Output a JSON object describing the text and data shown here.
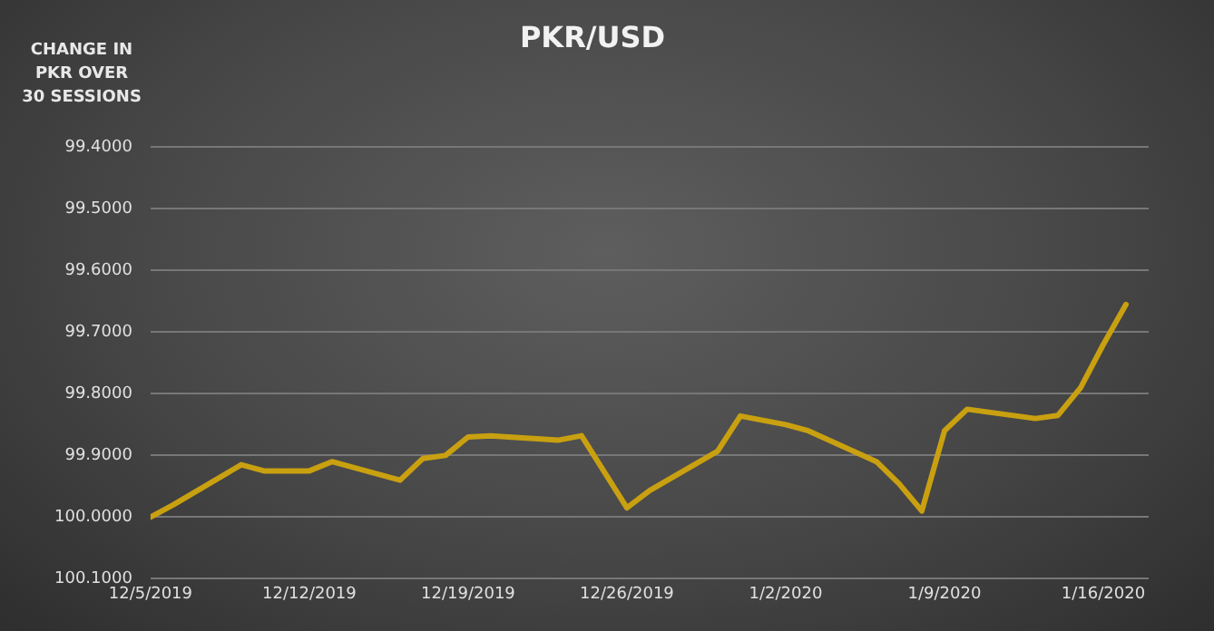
{
  "chart_data": {
    "type": "line",
    "title": "PKR/USD",
    "ylabel": "CHANGE IN PKR OVER 30 SESSIONS",
    "x": [
      "2019-12-05",
      "2019-12-06",
      "2019-12-09",
      "2019-12-10",
      "2019-12-11",
      "2019-12-12",
      "2019-12-13",
      "2019-12-16",
      "2019-12-17",
      "2019-12-18",
      "2019-12-19",
      "2019-12-20",
      "2019-12-23",
      "2019-12-24",
      "2019-12-26",
      "2019-12-27",
      "2019-12-30",
      "2019-12-31",
      "2020-01-02",
      "2020-01-03",
      "2020-01-06",
      "2020-01-07",
      "2020-01-08",
      "2020-01-09",
      "2020-01-10",
      "2020-01-13",
      "2020-01-14",
      "2020-01-15",
      "2020-01-16",
      "2020-01-17"
    ],
    "series": [
      {
        "color": "#c9a010",
        "values": [
          100.0,
          99.98,
          99.915,
          99.925,
          99.925,
          99.925,
          99.91,
          99.94,
          99.905,
          99.9,
          99.87,
          99.868,
          99.875,
          99.868,
          99.985,
          99.957,
          99.893,
          99.836,
          99.85,
          99.86,
          99.91,
          99.946,
          99.99,
          99.86,
          99.825,
          99.84,
          99.835,
          99.79,
          99.72,
          99.655
        ]
      }
    ],
    "xlim": [
      "2019-12-05",
      "2020-01-18"
    ],
    "xticks": [
      {
        "value": "2019-12-05",
        "label": "12/5/2019"
      },
      {
        "value": "2019-12-12",
        "label": "12/12/2019"
      },
      {
        "value": "2019-12-19",
        "label": "12/19/2019"
      },
      {
        "value": "2019-12-26",
        "label": "12/26/2019"
      },
      {
        "value": "2020-01-02",
        "label": "1/2/2020"
      },
      {
        "value": "2020-01-09",
        "label": "1/9/2020"
      },
      {
        "value": "2020-01-16",
        "label": "1/16/2020"
      }
    ],
    "ylim": [
      100.1,
      99.4
    ],
    "yticks": [
      {
        "value": 99.4,
        "label": "99.4000"
      },
      {
        "value": 99.5,
        "label": "99.5000"
      },
      {
        "value": 99.6,
        "label": "99.6000"
      },
      {
        "value": 99.7,
        "label": "99.7000"
      },
      {
        "value": 99.8,
        "label": "99.8000"
      },
      {
        "value": 99.9,
        "label": "99.9000"
      },
      {
        "value": 100.0,
        "label": "100.0000"
      },
      {
        "value": 100.1,
        "label": "100.1000"
      }
    ],
    "grid": "y",
    "legend": false,
    "marker": "none",
    "line_style": "solid"
  }
}
